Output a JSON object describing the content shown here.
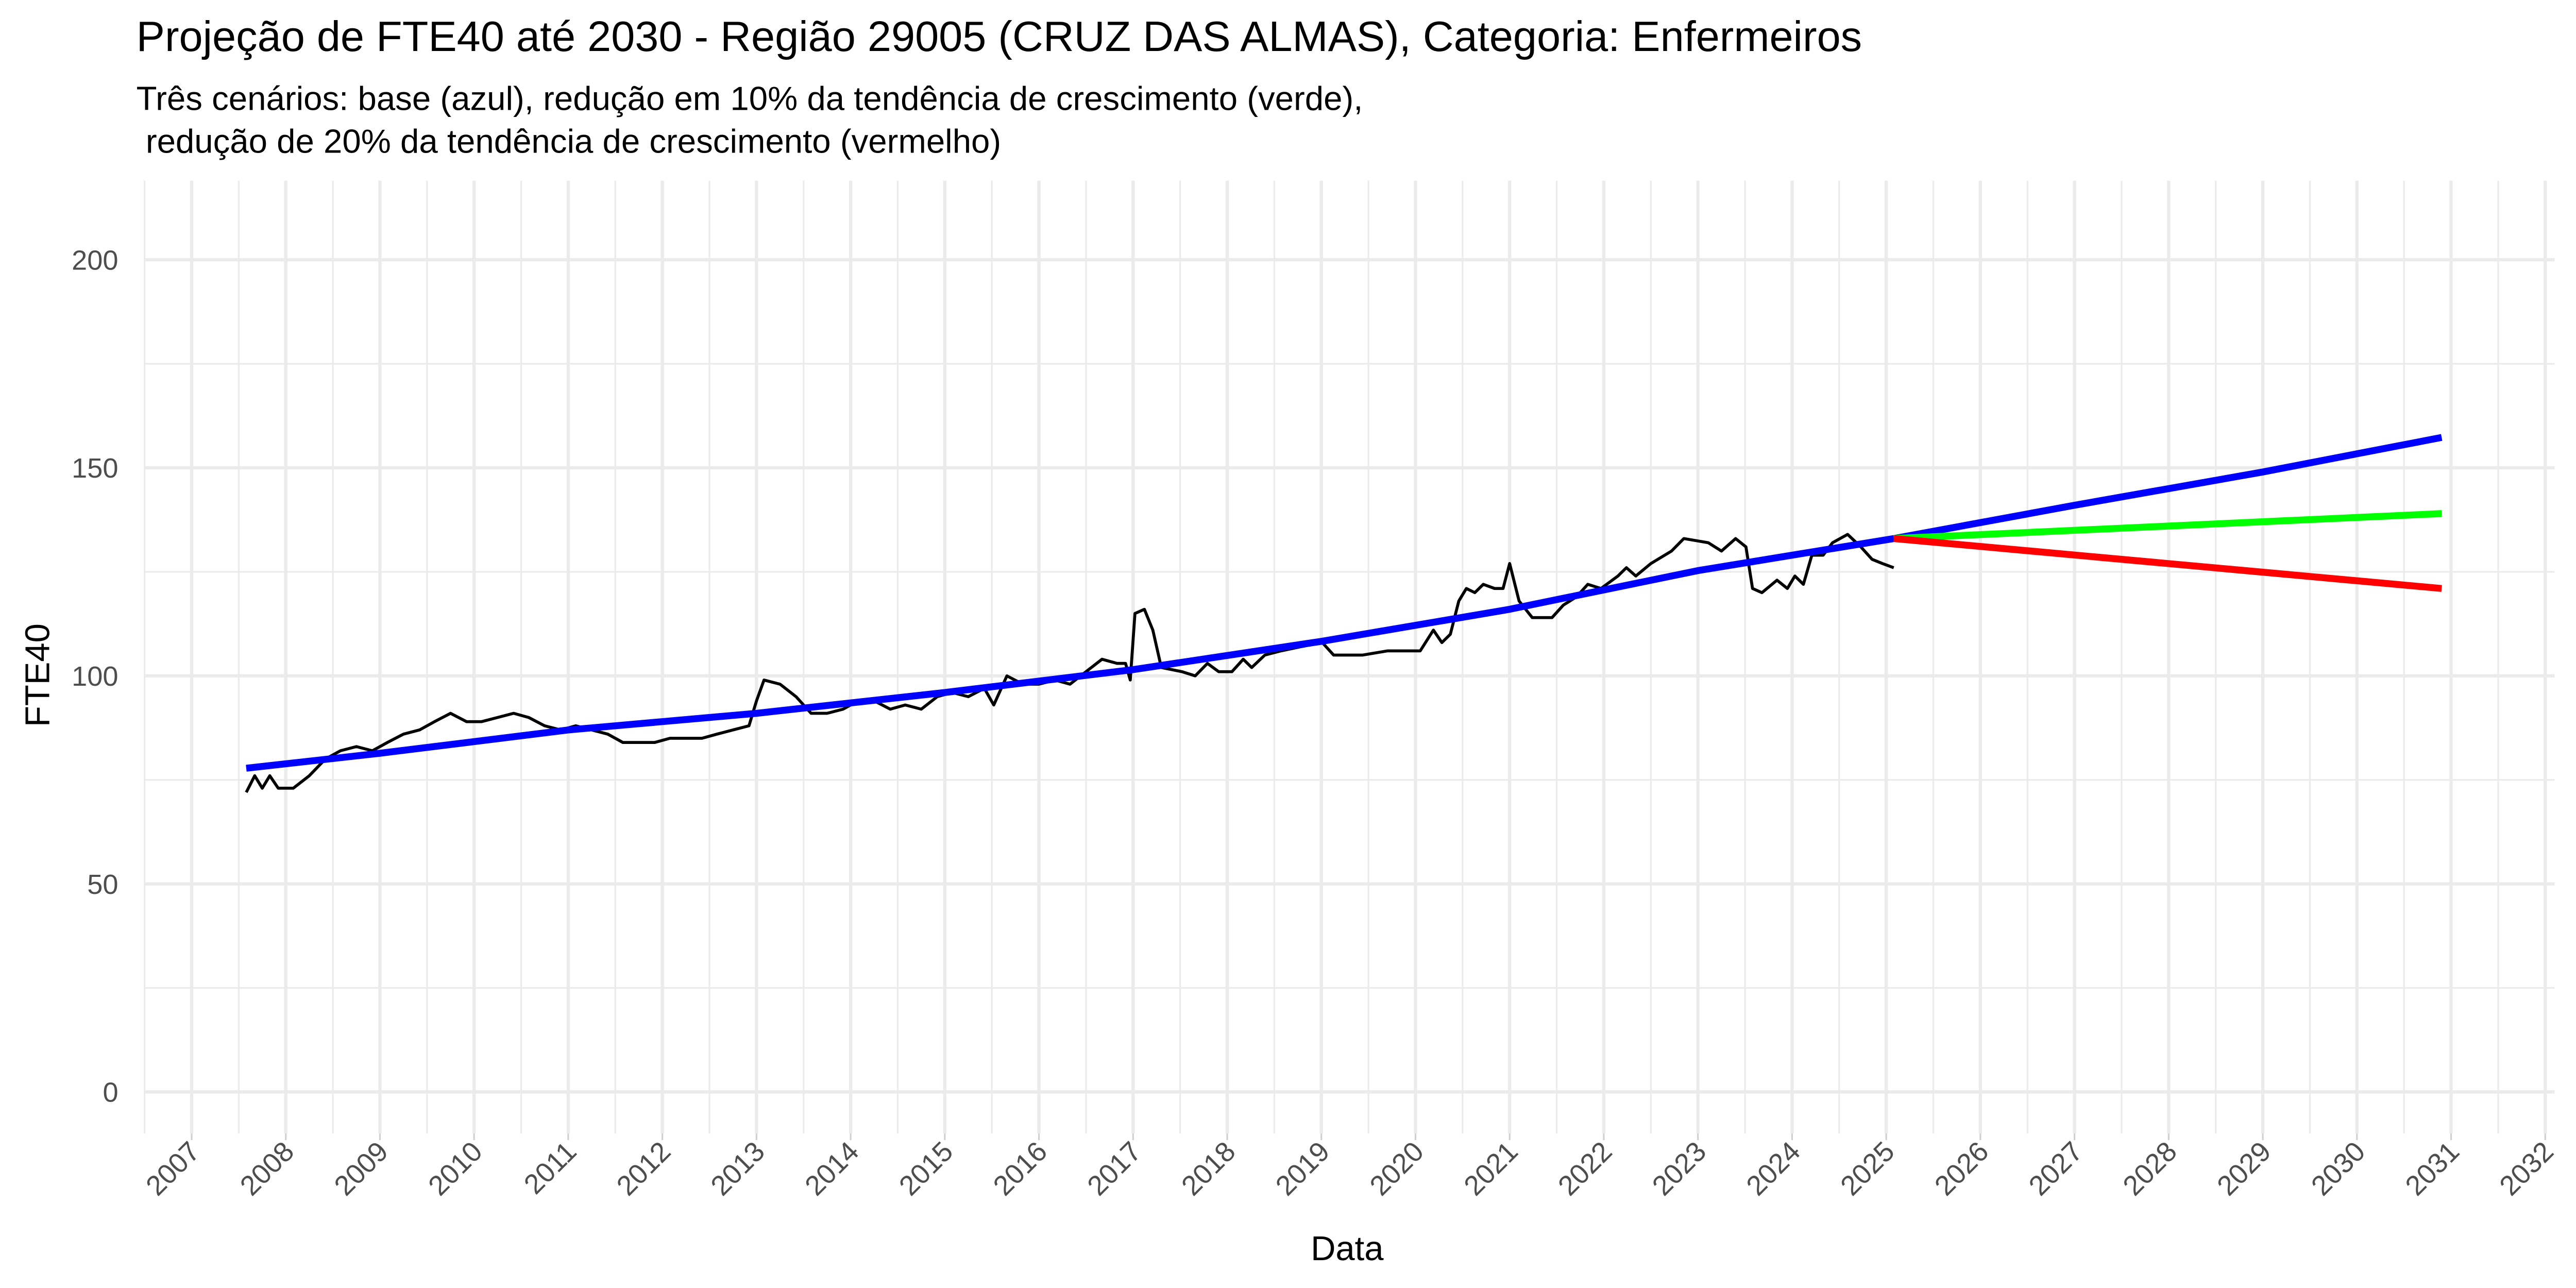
{
  "chart_data": {
    "type": "line",
    "title": "Projeção de FTE40 até 2030 - Região 29005 (CRUZ DAS ALMAS), Categoria: Enfermeiros",
    "subtitle": [
      "Três cenários: base (azul), redução em 10% da tendência de crescimento (verde),",
      " redução de 20% da tendência de crescimento (vermelho)"
    ],
    "x_label": "Data",
    "y_label": "FTE40",
    "xlim": [
      2006.5,
      2032.1
    ],
    "ylim": [
      -10,
      219
    ],
    "xticks": [
      2007,
      2008,
      2009,
      2010,
      2011,
      2012,
      2013,
      2014,
      2015,
      2016,
      2017,
      2018,
      2019,
      2020,
      2021,
      2022,
      2023,
      2024,
      2025,
      2026,
      2027,
      2028,
      2029,
      2030,
      2031,
      2032
    ],
    "yticks": [
      0,
      50,
      100,
      150,
      200
    ],
    "grid": true,
    "series": [
      {
        "color": "#000000",
        "x": [
          2007.58,
          2007.67,
          2007.75,
          2007.83,
          2007.92,
          2008.08,
          2008.25,
          2008.42,
          2008.58,
          2008.75,
          2008.92,
          2009.08,
          2009.25,
          2009.42,
          2009.58,
          2009.75,
          2009.92,
          2010.08,
          2010.25,
          2010.42,
          2010.58,
          2010.75,
          2010.92,
          2011.08,
          2011.25,
          2011.42,
          2011.58,
          2011.75,
          2011.92,
          2012.08,
          2012.25,
          2012.42,
          2012.58,
          2012.75,
          2012.92,
          2013.0,
          2013.08,
          2013.25,
          2013.42,
          2013.58,
          2013.75,
          2013.92,
          2014.08,
          2014.25,
          2014.42,
          2014.58,
          2014.75,
          2014.92,
          2015.08,
          2015.25,
          2015.42,
          2015.52,
          2015.66,
          2015.83,
          2016.0,
          2016.17,
          2016.33,
          2016.5,
          2016.67,
          2016.83,
          2016.92,
          2016.97,
          2017.02,
          2017.12,
          2017.21,
          2017.3,
          2017.52,
          2017.66,
          2017.79,
          2017.91,
          2018.05,
          2018.17,
          2018.26,
          2018.4,
          2018.57,
          2018.78,
          2019.01,
          2019.13,
          2019.44,
          2019.7,
          2019.88,
          2020.05,
          2020.19,
          2020.28,
          2020.37,
          2020.46,
          2020.54,
          2020.63,
          2020.72,
          2020.84,
          2020.93,
          2021.0,
          2021.1,
          2021.24,
          2021.45,
          2021.57,
          2021.71,
          2021.83,
          2021.97,
          2022.15,
          2022.24,
          2022.34,
          2022.5,
          2022.72,
          2022.85,
          2023.11,
          2023.25,
          2023.4,
          2023.51,
          2023.58,
          2023.68,
          2023.84,
          2023.95,
          2024.03,
          2024.12,
          2024.21,
          2024.33,
          2024.43,
          2024.59,
          2024.73,
          2024.85,
          2024.96,
          2025.08
        ],
        "values": [
          72,
          76,
          73,
          76,
          73,
          73,
          76,
          80,
          82,
          83,
          82,
          84,
          86,
          87,
          89,
          91,
          89,
          89,
          90,
          91,
          90,
          88,
          87,
          88,
          87,
          86,
          84,
          84,
          84,
          85,
          85,
          85,
          86,
          87,
          88,
          94,
          99,
          98,
          95,
          91,
          91,
          92,
          94,
          94,
          92,
          93,
          92,
          95,
          96,
          95,
          97,
          93,
          100,
          98,
          98,
          99,
          98,
          101,
          104,
          103,
          103,
          99,
          115,
          116,
          111,
          102,
          101,
          100,
          103,
          101,
          101,
          104,
          102,
          105,
          106,
          107,
          108,
          105,
          105,
          106,
          106,
          106,
          111,
          108,
          110,
          118,
          121,
          120,
          122,
          121,
          121,
          127,
          118,
          114,
          114,
          117,
          119,
          122,
          121,
          124,
          126,
          124,
          127,
          130,
          133,
          132,
          130,
          133,
          131,
          121,
          120,
          123,
          121,
          124,
          122,
          129,
          129,
          132,
          134,
          131,
          128,
          127,
          126
        ]
      },
      {
        "color": "#0000ff",
        "x": [
          2007.58,
          2009,
          2011,
          2013,
          2015,
          2017,
          2019,
          2021,
          2023,
          2025.08,
          2027,
          2029,
          2030.9
        ],
        "values": [
          77.8,
          81.4,
          87,
          91,
          96,
          101.5,
          108.3,
          116,
          125.3,
          133,
          141,
          149,
          157.3
        ]
      },
      {
        "color": "#00ff00",
        "x": [
          2025.08,
          2030.9
        ],
        "values": [
          133,
          139
        ]
      },
      {
        "color": "#ff0000",
        "x": [
          2025.08,
          2030.9
        ],
        "values": [
          133,
          121
        ]
      }
    ]
  }
}
